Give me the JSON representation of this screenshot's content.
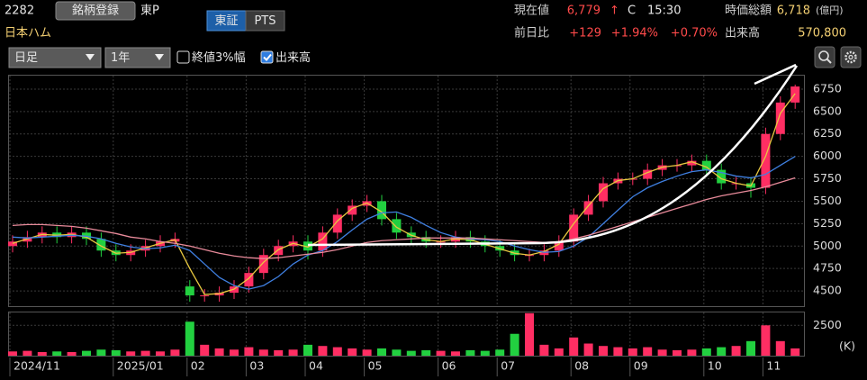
{
  "header": {
    "code": "2282",
    "register_button": "銘柄登録",
    "market": "東P",
    "name": "日本ハム",
    "exchange_tabs": [
      {
        "label": "東証",
        "selected": true
      },
      {
        "label": "PTS",
        "selected": false
      }
    ],
    "price_label": "現在値",
    "price": "6,779",
    "price_arrow": "↑",
    "price_flag": "C",
    "time": "15:30",
    "mcap_label": "時価総額",
    "mcap": "6,718",
    "mcap_unit": "(億円)",
    "change_label": "前日比",
    "change": "+129",
    "change_pct": "+1.94%",
    "extra_pct": "+0.70%",
    "volume_label": "出来高",
    "volume": "570,800"
  },
  "controls": {
    "selects": [
      "日足",
      "1年"
    ],
    "checkboxes": [
      {
        "label": "終値3%幅",
        "checked": false
      },
      {
        "label": "出来高",
        "checked": true
      }
    ]
  },
  "chart_data": {
    "type": "candlestick",
    "categories": [
      "2024/11",
      null,
      null,
      null,
      null,
      null,
      null,
      "2025/01",
      null,
      null,
      null,
      null,
      "02",
      null,
      null,
      null,
      "03",
      null,
      null,
      null,
      "04",
      null,
      null,
      null,
      "05",
      null,
      null,
      null,
      null,
      "06",
      null,
      null,
      null,
      "07",
      null,
      null,
      null,
      null,
      "08",
      null,
      null,
      null,
      "09",
      null,
      null,
      null,
      null,
      "10",
      null,
      null,
      null,
      "11",
      null,
      null
    ],
    "open": [
      5000,
      5050,
      5100,
      5150,
      5100,
      5150,
      5080,
      4950,
      4900,
      4950,
      5000,
      5050,
      4550,
      4450,
      4450,
      4480,
      4550,
      4700,
      4900,
      5000,
      5050,
      4950,
      5150,
      5350,
      5450,
      5500,
      5300,
      5150,
      5100,
      5050,
      5050,
      5100,
      5050,
      5000,
      4950,
      4900,
      4900,
      4950,
      5050,
      5350,
      5500,
      5700,
      5750,
      5750,
      5850,
      5900,
      5900,
      5950,
      5850,
      5700,
      5700,
      5650,
      6250,
      6600
    ],
    "high": [
      5120,
      5170,
      5220,
      5220,
      5220,
      5220,
      5150,
      5020,
      5020,
      5070,
      5120,
      5150,
      4620,
      4520,
      4550,
      4620,
      4770,
      4970,
      5070,
      5120,
      5120,
      5220,
      5420,
      5520,
      5570,
      5570,
      5370,
      5220,
      5170,
      5120,
      5170,
      5170,
      5120,
      5070,
      5020,
      4970,
      5020,
      5120,
      5420,
      5570,
      5770,
      5820,
      5820,
      5920,
      5970,
      5970,
      6020,
      6020,
      5920,
      5770,
      5770,
      6320,
      6670,
      6800
    ],
    "low": [
      4930,
      4980,
      5030,
      5030,
      5030,
      5010,
      4880,
      4830,
      4830,
      4880,
      4930,
      4980,
      4380,
      4380,
      4380,
      4410,
      4480,
      4630,
      4830,
      4930,
      4850,
      4880,
      5080,
      5280,
      5380,
      5230,
      5080,
      5030,
      4980,
      4980,
      4980,
      4980,
      4930,
      4880,
      4830,
      4830,
      4830,
      4880,
      4980,
      5280,
      5430,
      5630,
      5680,
      5680,
      5780,
      5830,
      5830,
      5780,
      5630,
      5630,
      5540,
      5580,
      6180,
      6530
    ],
    "close": [
      5050,
      5100,
      5150,
      5100,
      5150,
      5080,
      4950,
      4900,
      4950,
      5000,
      5050,
      5080,
      4450,
      4450,
      4480,
      4550,
      4700,
      4900,
      5000,
      5050,
      4950,
      5150,
      5350,
      5450,
      5500,
      5300,
      5150,
      5100,
      5050,
      5050,
      5100,
      5050,
      5000,
      4950,
      4900,
      4900,
      4950,
      5050,
      5350,
      5500,
      5700,
      5750,
      5750,
      5850,
      5900,
      5900,
      5950,
      5850,
      5700,
      5700,
      5650,
      6250,
      6600,
      6779
    ],
    "volume": [
      350,
      400,
      300,
      350,
      300,
      400,
      500,
      450,
      350,
      400,
      350,
      500,
      2800,
      900,
      600,
      500,
      700,
      500,
      450,
      500,
      900,
      800,
      700,
      600,
      500,
      600,
      500,
      400,
      450,
      400,
      350,
      450,
      400,
      500,
      1800,
      3500,
      900,
      600,
      1500,
      1000,
      800,
      700,
      600,
      700,
      500,
      450,
      500,
      600,
      700,
      800,
      1200,
      2500,
      1200,
      600
    ],
    "moving_averages": [
      {
        "color": "#e8c840",
        "values": [
          5030,
          5080,
          5130,
          5120,
          5130,
          5100,
          5000,
          4920,
          4930,
          4980,
          5030,
          5070,
          4750,
          4460,
          4470,
          4520,
          4640,
          4820,
          4960,
          5030,
          4990,
          5080,
          5280,
          5420,
          5480,
          5380,
          5210,
          5120,
          5070,
          5050,
          5080,
          5070,
          5020,
          4970,
          4920,
          4900,
          4940,
          5020,
          5250,
          5450,
          5640,
          5730,
          5750,
          5820,
          5880,
          5900,
          5940,
          5880,
          5750,
          5700,
          5670,
          6000,
          6480,
          6700
        ]
      },
      {
        "color": "#3f7fe0",
        "values": [
          5100,
          5090,
          5100,
          5110,
          5120,
          5110,
          5080,
          5030,
          4990,
          4970,
          4980,
          5010,
          4950,
          4800,
          4650,
          4560,
          4520,
          4560,
          4660,
          4800,
          4900,
          4950,
          5050,
          5180,
          5300,
          5370,
          5380,
          5320,
          5230,
          5150,
          5100,
          5080,
          5070,
          5050,
          5000,
          4960,
          4930,
          4940,
          5000,
          5100,
          5250,
          5400,
          5550,
          5650,
          5720,
          5780,
          5830,
          5850,
          5820,
          5780,
          5760,
          5800,
          5900,
          6000
        ]
      },
      {
        "color": "#e88a9a",
        "values": [
          5230,
          5240,
          5240,
          5230,
          5220,
          5200,
          5170,
          5140,
          5100,
          5080,
          5050,
          5030,
          5000,
          4960,
          4920,
          4890,
          4870,
          4860,
          4870,
          4890,
          4910,
          4930,
          4960,
          5000,
          5040,
          5060,
          5070,
          5080,
          5090,
          5090,
          5090,
          5090,
          5080,
          5070,
          5060,
          5050,
          5040,
          5050,
          5080,
          5120,
          5170,
          5220,
          5270,
          5320,
          5370,
          5420,
          5470,
          5520,
          5560,
          5590,
          5620,
          5660,
          5710,
          5760
        ]
      }
    ],
    "up_color": "#ff2e63",
    "down_color": "#22d040",
    "ylim": [
      4330,
      6900
    ],
    "yticks": [
      4500,
      4750,
      5000,
      5250,
      5500,
      5750,
      6000,
      6250,
      6500,
      6750
    ],
    "volume_ylim": [
      0,
      3560
    ],
    "volume_yticks": [
      2500
    ],
    "volume_unit": "(K)",
    "grid": true
  }
}
